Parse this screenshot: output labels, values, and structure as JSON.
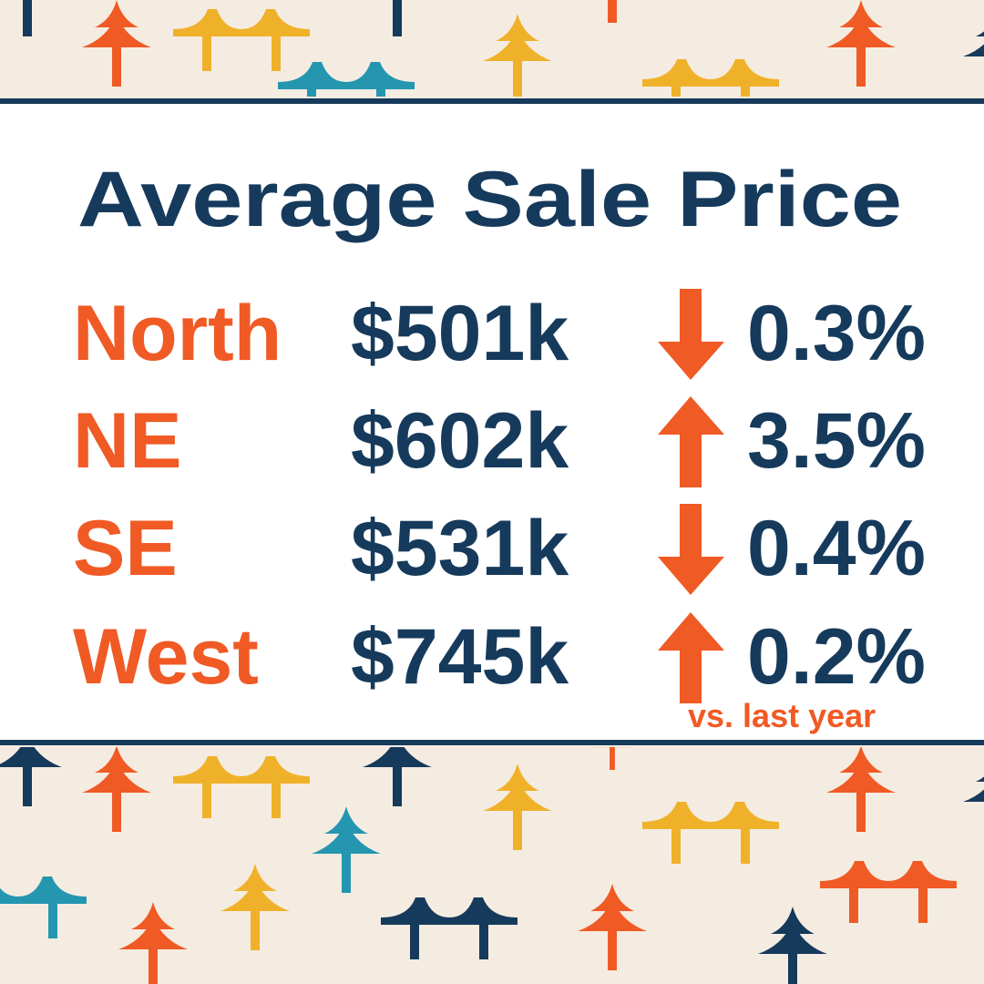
{
  "title": "Average Sale Price",
  "rows": [
    {
      "region": "North",
      "price": "$501k",
      "direction": "down",
      "change": "0.3%"
    },
    {
      "region": "NE",
      "price": "$602k",
      "direction": "up",
      "change": "3.5%"
    },
    {
      "region": "SE",
      "price": "$531k",
      "direction": "down",
      "change": "0.4%"
    },
    {
      "region": "West",
      "price": "$745k",
      "direction": "up",
      "change": "0.2%"
    }
  ],
  "footnote": "vs.  last year"
}
